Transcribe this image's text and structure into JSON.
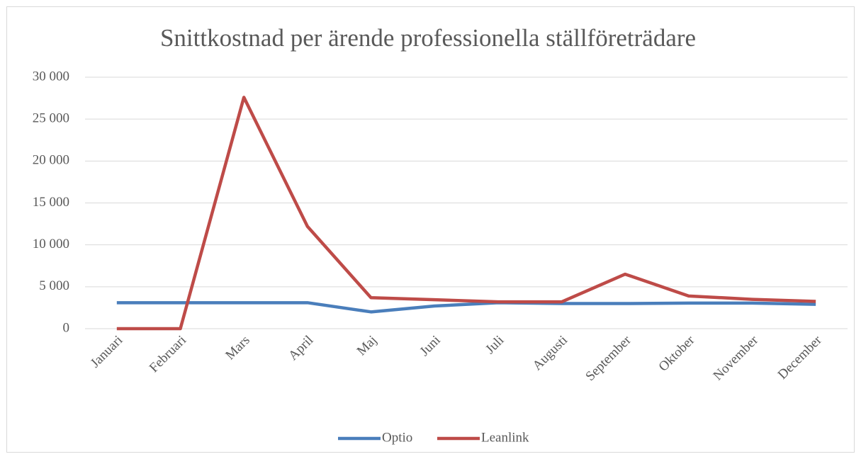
{
  "chart_data": {
    "type": "line",
    "title": "Snittkostnad per ärende professionella ställföreträdare",
    "categories": [
      "Januari",
      "Februari",
      "Mars",
      "April",
      "Maj",
      "Juni",
      "Juli",
      "Augusti",
      "September",
      "Oktober",
      "November",
      "December"
    ],
    "series": [
      {
        "name": "Optio",
        "color": "#4a7ebb",
        "values": [
          3100,
          3100,
          3100,
          3100,
          2000,
          2700,
          3100,
          3000,
          3000,
          3050,
          3050,
          2900
        ]
      },
      {
        "name": "Leanlink",
        "color": "#be4b48",
        "values": [
          0,
          0,
          27600,
          12200,
          3700,
          3450,
          3200,
          3200,
          6500,
          3900,
          3500,
          3250
        ]
      }
    ],
    "ylim": [
      0,
      30000
    ],
    "yticks": [
      0,
      {
        "value": 5000,
        "label": "5 000"
      },
      {
        "value": 10000,
        "label": "10 000"
      },
      {
        "value": 15000,
        "label": "15 000"
      },
      {
        "value": 20000,
        "label": "20 000"
      },
      {
        "value": 25000,
        "label": "25 000"
      },
      {
        "value": 30000,
        "label": "30 000"
      }
    ],
    "grid": true,
    "legend": "bottom"
  }
}
